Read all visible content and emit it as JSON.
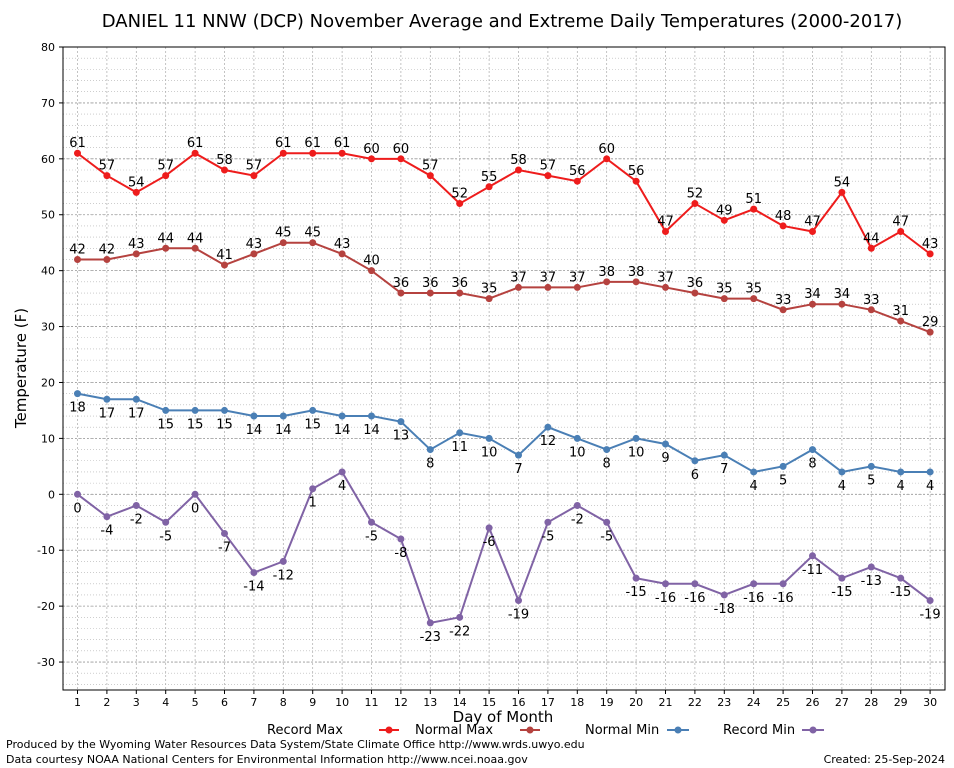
{
  "chart_data": {
    "type": "line",
    "title": "DANIEL 11 NNW (DCP) November Average and Extreme Daily Temperatures (2000-2017)",
    "xlabel": "Day of Month",
    "ylabel": "Temperature (F)",
    "ylim": [
      -35,
      80
    ],
    "yticks": [
      -30,
      -20,
      -10,
      0,
      10,
      20,
      30,
      40,
      50,
      60,
      70,
      80
    ],
    "x": [
      1,
      2,
      3,
      4,
      5,
      6,
      7,
      8,
      9,
      10,
      11,
      12,
      13,
      14,
      15,
      16,
      17,
      18,
      19,
      20,
      21,
      22,
      23,
      24,
      25,
      26,
      27,
      28,
      29,
      30
    ],
    "grid": true,
    "series": [
      {
        "name": "Record Max",
        "color": "#ee1c1c",
        "values": [
          61,
          57,
          54,
          57,
          61,
          58,
          57,
          61,
          61,
          61,
          60,
          60,
          57,
          52,
          55,
          58,
          57,
          56,
          60,
          56,
          47,
          52,
          49,
          51,
          48,
          47,
          54,
          44,
          47,
          43
        ]
      },
      {
        "name": "Normal Max",
        "color": "#b5423f",
        "values": [
          42,
          42,
          43,
          44,
          44,
          41,
          43,
          45,
          45,
          43,
          40,
          36,
          36,
          36,
          35,
          37,
          37,
          37,
          38,
          38,
          37,
          36,
          35,
          35,
          33,
          34,
          34,
          33,
          31,
          29
        ]
      },
      {
        "name": "Normal Min",
        "color": "#4a7fb5",
        "values": [
          18,
          17,
          17,
          15,
          15,
          15,
          14,
          14,
          15,
          14,
          14,
          13,
          8,
          11,
          10,
          7,
          12,
          10,
          8,
          10,
          9,
          6,
          7,
          4,
          5,
          8,
          4,
          5,
          4,
          4
        ]
      },
      {
        "name": "Record Min",
        "color": "#8063a5",
        "values": [
          0,
          -4,
          -2,
          -5,
          0,
          -7,
          -14,
          -12,
          1,
          4,
          -5,
          -8,
          -23,
          -22,
          -6,
          -19,
          -5,
          -2,
          -5,
          -15,
          -16,
          -16,
          -18,
          -16,
          -16,
          -11,
          -15,
          -13,
          -15,
          -19
        ]
      }
    ]
  },
  "footer": {
    "line1": "Produced by the Wyoming Water Resources Data System/State Climate Office http://www.wrds.uwyo.edu",
    "line2": "Data courtesy NOAA National Centers for Environmental Information http://www.ncei.noaa.gov",
    "created": "Created:  25-Sep-2024"
  }
}
